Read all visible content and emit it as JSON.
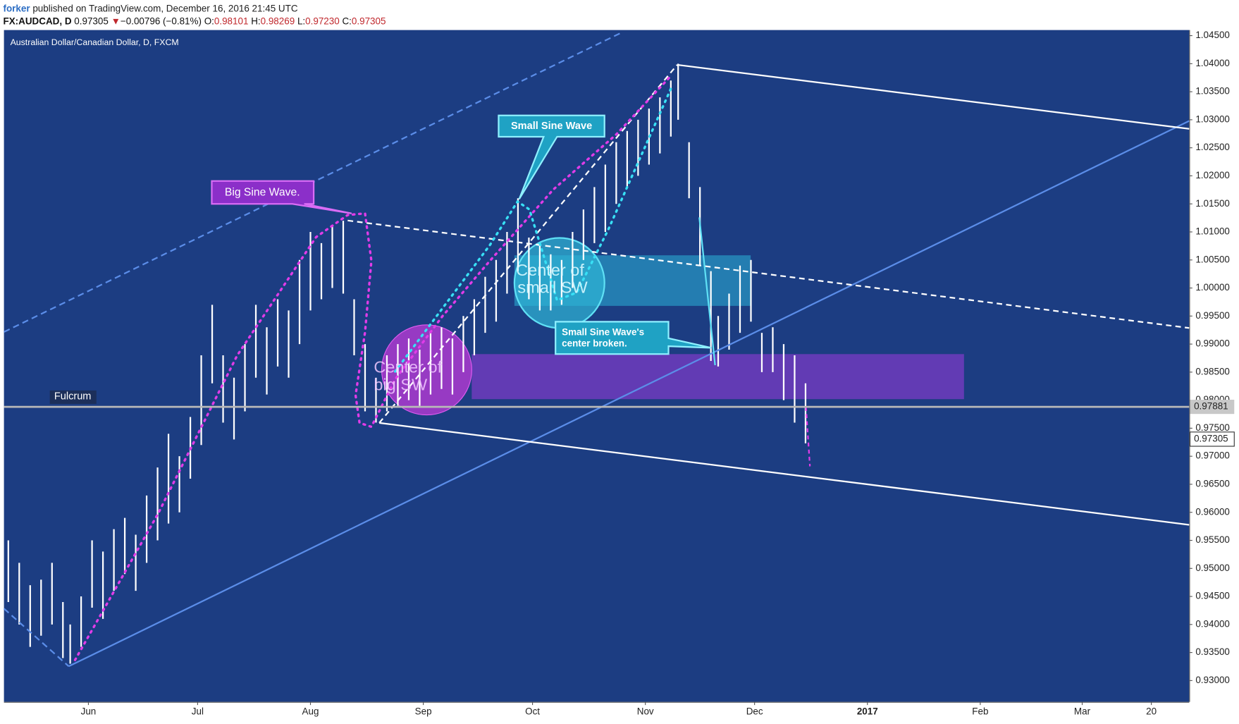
{
  "header": {
    "user": "forker",
    "published": "published on TradingView.com, December 16, 2016 21:45 UTC",
    "symbol": "FX:AUDCAD, D",
    "price": "0.97305",
    "arrow": "▼",
    "change": "−0.00796 (−0.81%)",
    "o_label": "O:",
    "o": "0.98101",
    "h_label": "H:",
    "h": "0.98269",
    "l_label": "L:",
    "l": "0.97230",
    "c_label": "C:",
    "c": "0.97305"
  },
  "chart_data": {
    "type": "ohlc",
    "title": "Australian Dollar/Canadian Dollar, D, FXCM",
    "x": [
      -22,
      -19,
      -16,
      -13,
      -10,
      -7,
      -5,
      -2,
      1,
      4,
      7,
      10,
      13,
      16,
      19,
      22,
      25,
      28,
      31,
      34,
      37,
      40,
      43,
      46,
      49,
      52,
      55,
      58,
      61,
      64,
      67,
      70,
      73,
      76,
      79,
      82,
      85,
      88,
      91,
      94,
      97,
      100,
      103,
      106,
      109,
      112,
      115,
      118,
      121,
      124,
      127,
      130,
      133,
      136,
      139,
      142,
      145,
      148,
      151,
      154,
      157,
      160,
      162,
      165,
      168,
      171,
      173,
      176,
      179,
      182,
      185,
      188,
      191,
      194,
      197
    ],
    "high": [
      0.955,
      0.951,
      0.947,
      0.948,
      0.951,
      0.944,
      0.94,
      0.945,
      0.955,
      0.953,
      0.957,
      0.959,
      0.956,
      0.963,
      0.968,
      0.974,
      0.97,
      0.977,
      0.988,
      0.997,
      0.988,
      0.984,
      0.99,
      0.997,
      0.993,
      0.998,
      0.996,
      1.005,
      1.01,
      1.008,
      1.011,
      1.012,
      0.998,
      0.99,
      0.984,
      0.988,
      0.99,
      0.991,
      0.989,
      0.992,
      0.993,
      0.991,
      0.995,
      0.998,
      1.002,
      1.005,
      1.01,
      1.016,
      1.009,
      1.008,
      1.006,
      1.005,
      1.01,
      1.014,
      1.018,
      1.022,
      1.026,
      1.028,
      1.03,
      1.032,
      1.034,
      1.037,
      1.04,
      1.026,
      1.018,
      1.003,
      0.995,
      0.999,
      1.004,
      1.005,
      0.992,
      0.993,
      0.99,
      0.988,
      0.983
    ],
    "low": [
      0.944,
      0.94,
      0.936,
      0.938,
      0.94,
      0.934,
      0.933,
      0.936,
      0.943,
      0.941,
      0.946,
      0.949,
      0.946,
      0.951,
      0.955,
      0.958,
      0.96,
      0.966,
      0.972,
      0.983,
      0.976,
      0.973,
      0.978,
      0.984,
      0.981,
      0.986,
      0.984,
      0.99,
      0.996,
      0.998,
      1.0,
      0.999,
      0.988,
      0.978,
      0.976,
      0.978,
      0.979,
      0.98,
      0.979,
      0.981,
      0.982,
      0.981,
      0.985,
      0.988,
      0.992,
      0.994,
      0.999,
      1.003,
      0.998,
      0.996,
      0.996,
      0.997,
      1.0,
      1.005,
      1.008,
      1.01,
      1.015,
      1.018,
      1.02,
      1.022,
      1.024,
      1.027,
      1.03,
      1.016,
      1.004,
      0.987,
      0.986,
      0.989,
      0.992,
      0.994,
      0.985,
      0.985,
      0.98,
      0.976,
      0.9723
    ],
    "color": "#ffffff",
    "xlim": [
      -23.2,
      302.4
    ],
    "xticks": [
      {
        "value": 0,
        "label": "Jun"
      },
      {
        "value": 30,
        "label": "Jul"
      },
      {
        "value": 61,
        "label": "Aug"
      },
      {
        "value": 92,
        "label": "Sep"
      },
      {
        "value": 122,
        "label": "Oct"
      },
      {
        "value": 153,
        "label": "Nov"
      },
      {
        "value": 183,
        "label": "Dec"
      },
      {
        "value": 214,
        "label": "2017"
      },
      {
        "value": 245,
        "label": "Feb"
      },
      {
        "value": 273,
        "label": "Mar"
      },
      {
        "value": 292,
        "label": "20"
      }
    ],
    "ylim": [
      0.9262,
      1.046
    ],
    "yticks": [
      {
        "value": 0.93,
        "label": "0.93000"
      },
      {
        "value": 0.935,
        "label": "0.93500"
      },
      {
        "value": 0.94,
        "label": "0.94000"
      },
      {
        "value": 0.945,
        "label": "0.94500"
      },
      {
        "value": 0.95,
        "label": "0.95000"
      },
      {
        "value": 0.955,
        "label": "0.95500"
      },
      {
        "value": 0.96,
        "label": "0.96000"
      },
      {
        "value": 0.965,
        "label": "0.96500"
      },
      {
        "value": 0.97,
        "label": "0.97000"
      },
      {
        "value": 0.975,
        "label": "0.97500"
      },
      {
        "value": 0.98,
        "label": "0.98000"
      },
      {
        "value": 0.985,
        "label": "0.98500"
      },
      {
        "value": 0.99,
        "label": "0.99000"
      },
      {
        "value": 0.995,
        "label": "0.99500"
      },
      {
        "value": 1.0,
        "label": "1.00000"
      },
      {
        "value": 1.005,
        "label": "1.00500"
      },
      {
        "value": 1.01,
        "label": "1.01000"
      },
      {
        "value": 1.015,
        "label": "1.01500"
      },
      {
        "value": 1.02,
        "label": "1.02000"
      },
      {
        "value": 1.025,
        "label": "1.02500"
      },
      {
        "value": 1.03,
        "label": "1.03000"
      },
      {
        "value": 1.035,
        "label": "1.03500"
      },
      {
        "value": 1.04,
        "label": "1.04000"
      },
      {
        "value": 1.045,
        "label": "1.04500"
      }
    ],
    "fulcrum": {
      "label": "Fulcrum",
      "value": 0.97881
    },
    "last_price": 0.97305,
    "annotations": {
      "big_wave": "Big Sine Wave.",
      "small_wave": "Small Sine Wave",
      "center_big": [
        "Center of",
        "big SW"
      ],
      "center_small": [
        "Center of",
        "small SW"
      ],
      "broken": [
        "Small Sine Wave's",
        "center broken."
      ]
    }
  }
}
